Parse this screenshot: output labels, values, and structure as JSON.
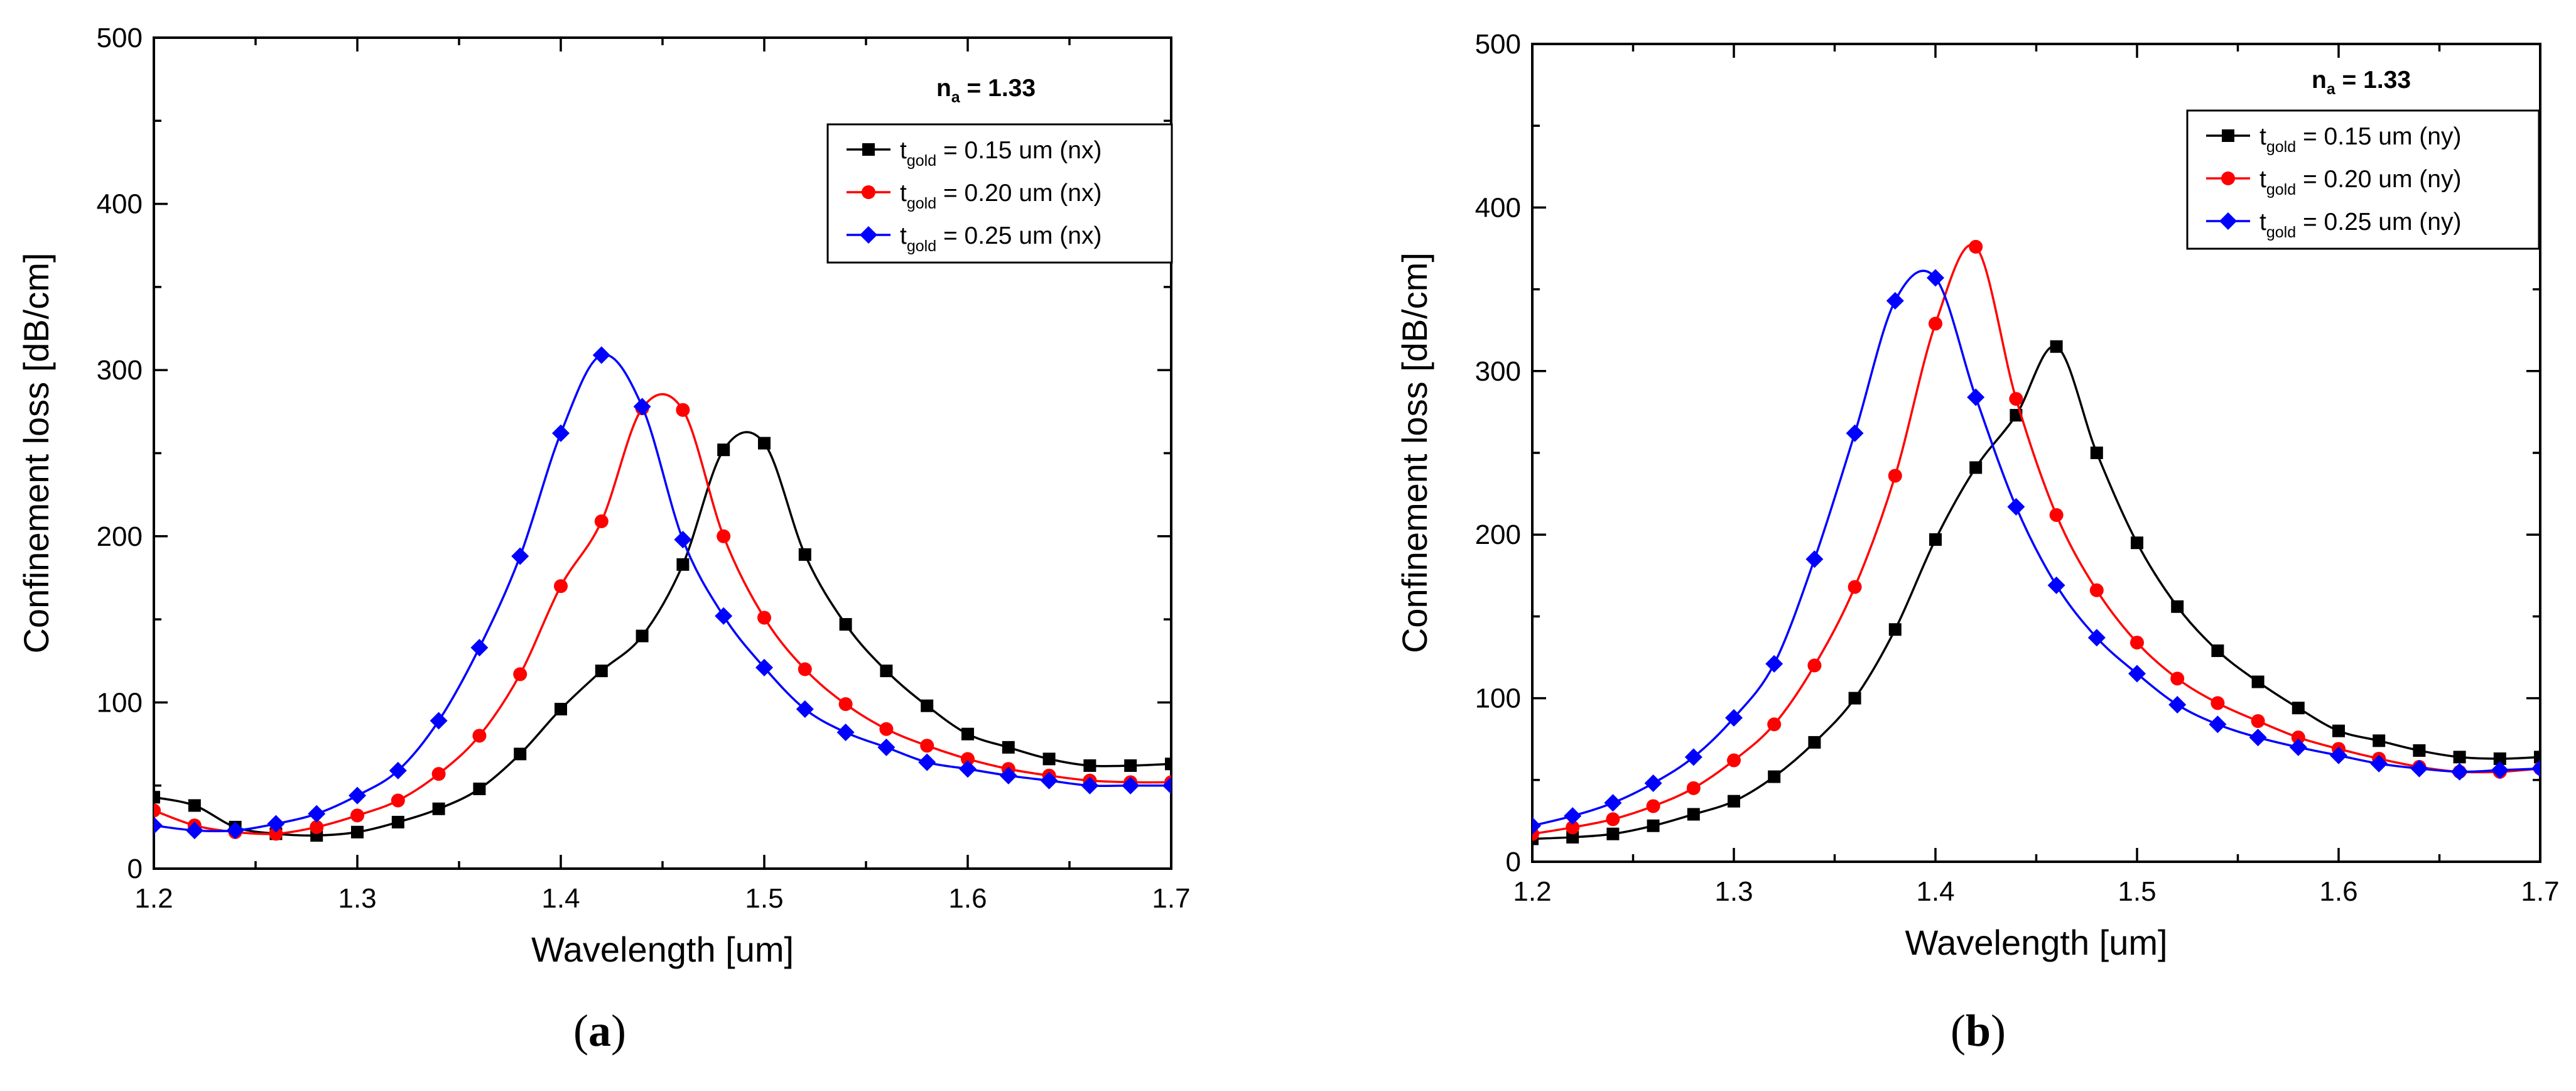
{
  "chart_data": [
    {
      "type": "line",
      "caption_letter": "a",
      "xlabel": "Wavelength [um]",
      "ylabel": "Confinement loss [dB/cm]",
      "xlim": [
        1.2,
        1.7
      ],
      "ylim": [
        0,
        500
      ],
      "xticks": [
        "1.2",
        "1.3",
        "1.4",
        "1.5",
        "1.6",
        "1.7"
      ],
      "yticks": [
        "0",
        "100",
        "200",
        "300",
        "400",
        "500"
      ],
      "annotation": {
        "base": "n",
        "sub": "a",
        "rest": " = 1.33"
      },
      "legend_position": "top-right",
      "series": [
        {
          "name": "t_gold = 0.15 um (nx)",
          "label_base": "t",
          "label_sub": "gold",
          "label_rest": " = 0.15 um (nx)",
          "color": "#000000",
          "marker": "square",
          "x": [
            1.2,
            1.22,
            1.24,
            1.26,
            1.28,
            1.3,
            1.32,
            1.34,
            1.36,
            1.38,
            1.4,
            1.42,
            1.44,
            1.46,
            1.48,
            1.5,
            1.52,
            1.54,
            1.56,
            1.58,
            1.6,
            1.62,
            1.64,
            1.66,
            1.68,
            1.7
          ],
          "y": [
            43,
            38,
            25,
            21,
            20,
            22,
            28,
            36,
            48,
            69,
            96,
            119,
            140,
            183,
            252,
            256,
            189,
            147,
            119,
            98,
            81,
            73,
            66,
            62,
            62,
            63
          ]
        },
        {
          "name": "t_gold = 0.20 um (nx)",
          "label_base": "t",
          "label_sub": "gold",
          "label_rest": " = 0.20 um (nx)",
          "color": "#ff0000",
          "marker": "circle",
          "x": [
            1.2,
            1.22,
            1.24,
            1.26,
            1.28,
            1.3,
            1.32,
            1.34,
            1.36,
            1.38,
            1.4,
            1.42,
            1.44,
            1.46,
            1.48,
            1.5,
            1.52,
            1.54,
            1.56,
            1.58,
            1.6,
            1.62,
            1.64,
            1.66,
            1.68,
            1.7
          ],
          "y": [
            35,
            26,
            22,
            21,
            25,
            32,
            41,
            57,
            80,
            117,
            170,
            209,
            277,
            276,
            200,
            151,
            120,
            99,
            84,
            74,
            66,
            60,
            56,
            53,
            52,
            52
          ]
        },
        {
          "name": "t_gold = 0.25 um (nx)",
          "label_base": "t",
          "label_sub": "gold",
          "label_rest": " = 0.25 um (nx)",
          "color": "#0000ff",
          "marker": "diamond",
          "x": [
            1.2,
            1.22,
            1.24,
            1.26,
            1.28,
            1.3,
            1.32,
            1.34,
            1.36,
            1.38,
            1.4,
            1.42,
            1.44,
            1.46,
            1.48,
            1.5,
            1.52,
            1.54,
            1.56,
            1.58,
            1.6,
            1.62,
            1.64,
            1.66,
            1.68,
            1.7
          ],
          "y": [
            26,
            23,
            23,
            27,
            33,
            44,
            59,
            89,
            133,
            188,
            262,
            309,
            278,
            198,
            152,
            121,
            96,
            82,
            73,
            64,
            60,
            56,
            53,
            50,
            50,
            50
          ]
        }
      ]
    },
    {
      "type": "line",
      "caption_letter": "b",
      "xlabel": "Wavelength [um]",
      "ylabel": "Confinement loss [dB/cm]",
      "xlim": [
        1.2,
        1.7
      ],
      "ylim": [
        0,
        500
      ],
      "xticks": [
        "1.2",
        "1.3",
        "1.4",
        "1.5",
        "1.6",
        "1.7"
      ],
      "yticks": [
        "0",
        "100",
        "200",
        "300",
        "400",
        "500"
      ],
      "annotation": {
        "base": "n",
        "sub": "a",
        "rest": " = 1.33"
      },
      "legend_position": "top-right",
      "series": [
        {
          "name": "t_gold = 0.15 um (ny)",
          "label_base": "t",
          "label_sub": "gold",
          "label_rest": " = 0.15 um (ny)",
          "color": "#000000",
          "marker": "square",
          "x": [
            1.2,
            1.22,
            1.24,
            1.26,
            1.28,
            1.3,
            1.32,
            1.34,
            1.36,
            1.38,
            1.4,
            1.42,
            1.44,
            1.46,
            1.48,
            1.5,
            1.52,
            1.54,
            1.56,
            1.58,
            1.6,
            1.62,
            1.64,
            1.66,
            1.68,
            1.7
          ],
          "y": [
            14,
            15,
            17,
            22,
            29,
            37,
            52,
            73,
            100,
            142,
            197,
            241,
            273,
            315,
            250,
            195,
            156,
            129,
            110,
            94,
            80,
            74,
            68,
            64,
            63,
            64
          ]
        },
        {
          "name": "t_gold = 0.20 um (ny)",
          "label_base": "t",
          "label_sub": "gold",
          "label_rest": " = 0.20 um (ny)",
          "color": "#ff0000",
          "marker": "circle",
          "x": [
            1.2,
            1.22,
            1.24,
            1.26,
            1.28,
            1.3,
            1.32,
            1.34,
            1.36,
            1.38,
            1.4,
            1.42,
            1.44,
            1.46,
            1.48,
            1.5,
            1.52,
            1.54,
            1.56,
            1.58,
            1.6,
            1.62,
            1.64,
            1.66,
            1.68,
            1.7
          ],
          "y": [
            17,
            21,
            26,
            34,
            45,
            62,
            84,
            120,
            168,
            236,
            329,
            376,
            283,
            212,
            166,
            134,
            112,
            97,
            86,
            76,
            69,
            63,
            58,
            55,
            55,
            57
          ]
        },
        {
          "name": "t_gold = 0.25 um (ny)",
          "label_base": "t",
          "label_sub": "gold",
          "label_rest": " = 0.25 um (ny)",
          "color": "#0000ff",
          "marker": "diamond",
          "x": [
            1.2,
            1.22,
            1.24,
            1.26,
            1.28,
            1.3,
            1.32,
            1.34,
            1.36,
            1.38,
            1.4,
            1.42,
            1.44,
            1.46,
            1.48,
            1.5,
            1.52,
            1.54,
            1.56,
            1.58,
            1.6,
            1.62,
            1.64,
            1.66,
            1.68,
            1.7
          ],
          "y": [
            22,
            28,
            36,
            48,
            64,
            88,
            121,
            185,
            262,
            343,
            357,
            284,
            217,
            169,
            137,
            115,
            96,
            84,
            76,
            70,
            65,
            60,
            57,
            55,
            56,
            57
          ]
        }
      ]
    }
  ]
}
